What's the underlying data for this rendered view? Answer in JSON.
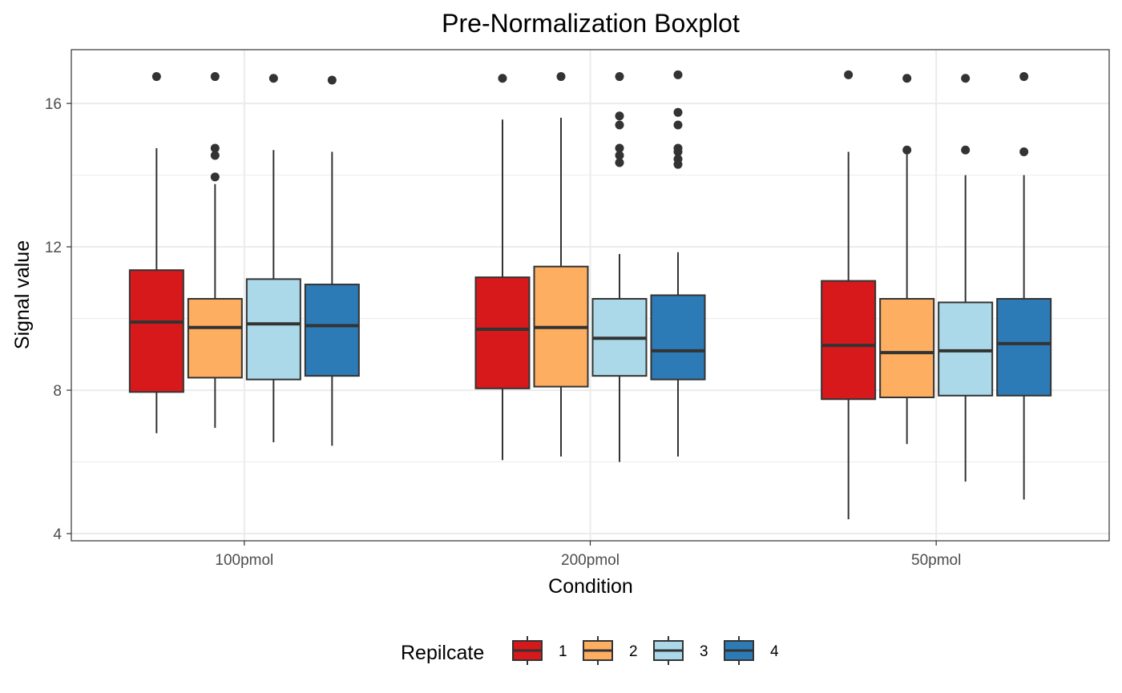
{
  "chart_data": {
    "type": "boxplot",
    "title": "Pre-Normalization Boxplot",
    "xlabel": "Condition",
    "ylabel": "Signal value",
    "categories": [
      "100pmol",
      "200pmol",
      "50pmol"
    ],
    "ylim": [
      3.8,
      17.5
    ],
    "yticks": [
      4,
      8,
      12,
      16
    ],
    "grid": true,
    "legend": {
      "title": "Repilcate",
      "position": "bottom"
    },
    "series": [
      {
        "name": "1",
        "color": "#D7191C",
        "boxes": [
          {
            "category": "100pmol",
            "whisker_low": 6.8,
            "q1": 7.95,
            "median": 9.9,
            "q3": 11.35,
            "whisker_high": 14.75,
            "outliers": [
              16.75
            ]
          },
          {
            "category": "200pmol",
            "whisker_low": 6.05,
            "q1": 8.05,
            "median": 9.7,
            "q3": 11.15,
            "whisker_high": 15.55,
            "outliers": [
              16.7
            ]
          },
          {
            "category": "50pmol",
            "whisker_low": 4.4,
            "q1": 7.75,
            "median": 9.25,
            "q3": 11.05,
            "whisker_high": 14.65,
            "outliers": [
              16.8
            ]
          }
        ]
      },
      {
        "name": "2",
        "color": "#FDAE61",
        "boxes": [
          {
            "category": "100pmol",
            "whisker_low": 6.95,
            "q1": 8.35,
            "median": 9.75,
            "q3": 10.55,
            "whisker_high": 13.75,
            "outliers": [
              13.95,
              14.55,
              14.75,
              16.75
            ]
          },
          {
            "category": "200pmol",
            "whisker_low": 6.15,
            "q1": 8.1,
            "median": 9.75,
            "q3": 11.45,
            "whisker_high": 15.6,
            "outliers": [
              16.75
            ]
          },
          {
            "category": "50pmol",
            "whisker_low": 6.5,
            "q1": 7.8,
            "median": 9.05,
            "q3": 10.55,
            "whisker_high": 14.7,
            "outliers": [
              14.7,
              16.7
            ]
          }
        ]
      },
      {
        "name": "3",
        "color": "#ABD9E9",
        "boxes": [
          {
            "category": "100pmol",
            "whisker_low": 6.55,
            "q1": 8.3,
            "median": 9.85,
            "q3": 11.1,
            "whisker_high": 14.7,
            "outliers": [
              16.7
            ]
          },
          {
            "category": "200pmol",
            "whisker_low": 6.0,
            "q1": 8.4,
            "median": 9.45,
            "q3": 10.55,
            "whisker_high": 11.8,
            "outliers": [
              14.35,
              14.55,
              14.75,
              15.4,
              15.65,
              16.75
            ]
          },
          {
            "category": "50pmol",
            "whisker_low": 5.45,
            "q1": 7.85,
            "median": 9.1,
            "q3": 10.45,
            "whisker_high": 14.0,
            "outliers": [
              14.7,
              16.7
            ]
          }
        ]
      },
      {
        "name": "4",
        "color": "#2C7BB6",
        "boxes": [
          {
            "category": "100pmol",
            "whisker_low": 6.45,
            "q1": 8.4,
            "median": 9.8,
            "q3": 10.95,
            "whisker_high": 14.65,
            "outliers": [
              16.65
            ]
          },
          {
            "category": "200pmol",
            "whisker_low": 6.15,
            "q1": 8.3,
            "median": 9.1,
            "q3": 10.65,
            "whisker_high": 11.85,
            "outliers": [
              14.3,
              14.45,
              14.65,
              14.75,
              15.4,
              15.75,
              16.8
            ]
          },
          {
            "category": "50pmol",
            "whisker_low": 4.95,
            "q1": 7.85,
            "median": 9.3,
            "q3": 10.55,
            "whisker_high": 14.0,
            "outliers": [
              14.65,
              16.75
            ]
          }
        ]
      }
    ]
  }
}
